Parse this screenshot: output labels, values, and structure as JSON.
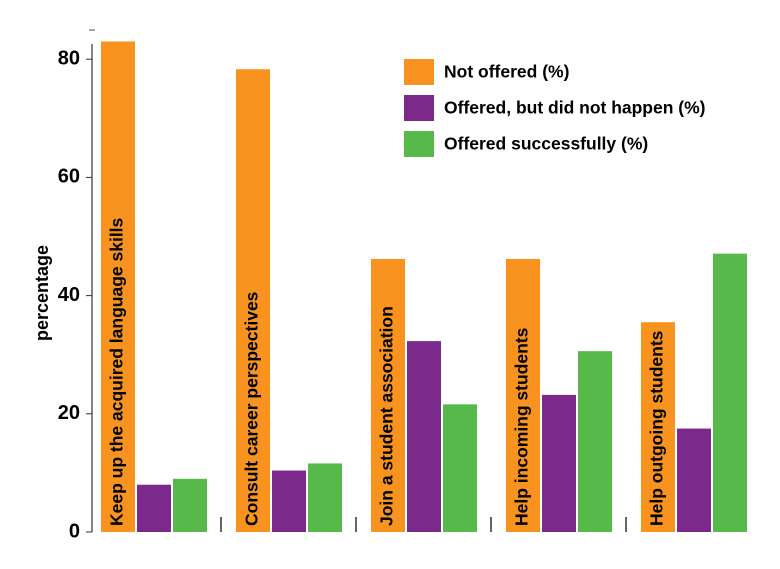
{
  "chart_data": {
    "type": "bar",
    "title": "",
    "xlabel": "",
    "ylabel": "percentage",
    "ylim": [
      0,
      84
    ],
    "yticks": [
      0,
      20,
      40,
      60,
      80
    ],
    "categories": [
      "Keep up the acquired language skills",
      "Consult career perspectives",
      "Join a student association",
      "Help incoming students",
      "Help outgoing students"
    ],
    "series": [
      {
        "name": "Not offered (%)",
        "color": "#f7931e",
        "values": [
          83,
          78.3,
          46.2,
          46.2,
          35.5
        ]
      },
      {
        "name": "Offered, but did not happen (%)",
        "color": "#7b2a8b",
        "values": [
          8,
          10.4,
          32.3,
          23.2,
          17.5
        ]
      },
      {
        "name": "Offered successfully  (%)",
        "color": "#56b949",
        "values": [
          9,
          11.6,
          21.6,
          30.6,
          47.1
        ]
      }
    ],
    "legend_position": "top-right",
    "grid": false
  }
}
